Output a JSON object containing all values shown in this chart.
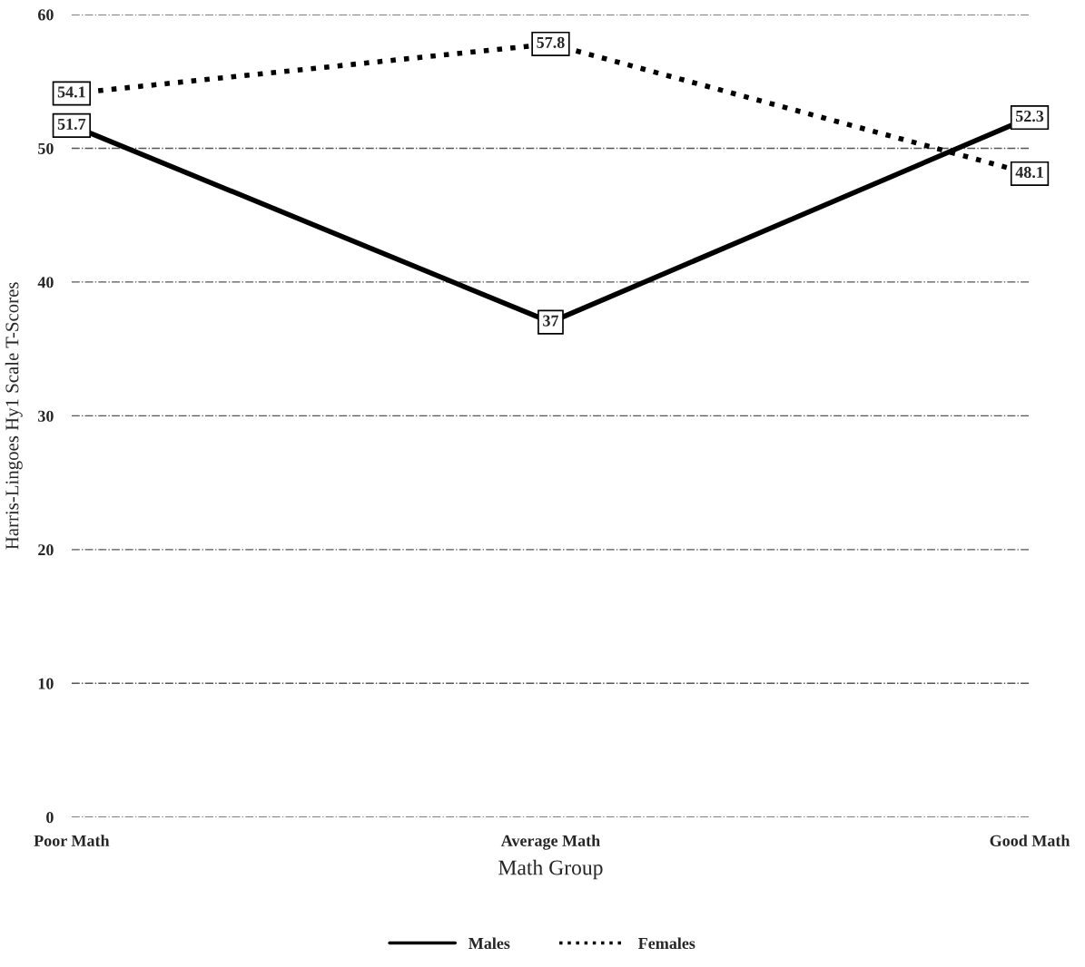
{
  "chart_data": {
    "type": "line",
    "xlabel": "Math Group",
    "ylabel": "Harris-Lingoes Hy1 Scale T-Scores",
    "categories": [
      "Poor Math",
      "Average Math",
      "Good Math"
    ],
    "series": [
      {
        "name": "Males",
        "color": "#000000",
        "values": [
          51.7,
          37,
          52.3
        ],
        "line_style": "solid"
      },
      {
        "name": "Females",
        "color": "#000000",
        "values": [
          54.1,
          57.8,
          48.1
        ],
        "line_style": "dotted"
      }
    ],
    "ylim": [
      0,
      60
    ],
    "yticks": [
      0,
      10,
      20,
      30,
      40,
      50,
      60
    ],
    "grid": "y",
    "legend": "bottom",
    "data_labels": true,
    "marker": "square"
  }
}
